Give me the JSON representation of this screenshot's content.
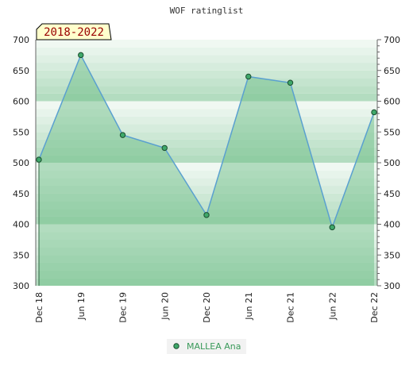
{
  "chart_data": {
    "type": "area",
    "title": "WOF ratinglist",
    "badge": "2018-2022",
    "categories": [
      "Dec 18",
      "Jun 19",
      "Dec 19",
      "Jun 20",
      "Dec 20",
      "Jun 21",
      "Dec 21",
      "Jun 22",
      "Dec 22"
    ],
    "series": [
      {
        "name": "MALLEA Ana",
        "values": [
          505,
          675,
          545,
          524,
          415,
          640,
          630,
          395,
          582
        ]
      }
    ],
    "ylim": [
      300,
      700
    ],
    "yticks": [
      300,
      350,
      400,
      450,
      500,
      550,
      600,
      650,
      700
    ],
    "grid": true,
    "legend_position": "bottom",
    "colors": {
      "line": "#5aa0d0",
      "marker": "#3fa86a",
      "fill": "#66bb80",
      "band_dark": "#b3dcc0",
      "band_light": "#f0f8f2",
      "badge_bg": "#ffffcc",
      "badge_text": "#990000",
      "legend_text": "#3a9a5a"
    }
  }
}
